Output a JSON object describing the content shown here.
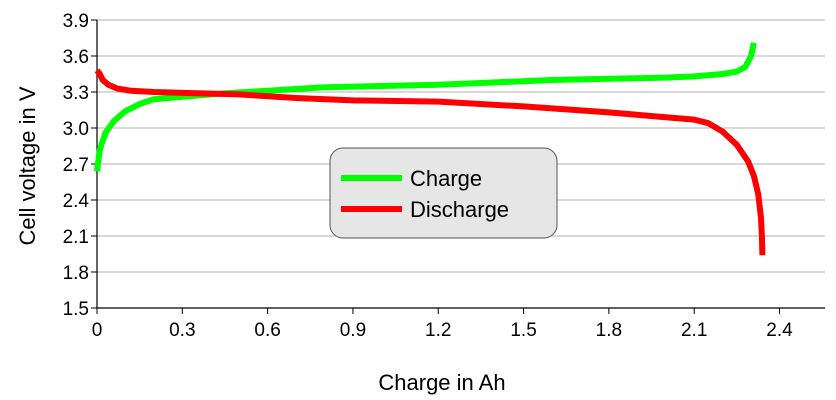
{
  "chart_data": {
    "type": "line",
    "title": "",
    "xlabel": "Charge in Ah",
    "ylabel": "Cell voltage in V",
    "xlim": [
      0,
      2.56
    ],
    "ylim": [
      1.5,
      3.9
    ],
    "x_ticks": [
      "0",
      "0.3",
      "0.6",
      "0.9",
      "1.2",
      "1.5",
      "1.8",
      "2.1",
      "2.4"
    ],
    "y_ticks": [
      "1.5",
      "1.8",
      "2.1",
      "2.4",
      "2.7",
      "3.0",
      "3.3",
      "3.6",
      "3.9"
    ],
    "grid": "horizontal",
    "legend_position": "center",
    "series": [
      {
        "name": "Charge",
        "color": "#00ff00",
        "x": [
          0.0,
          0.01,
          0.03,
          0.06,
          0.1,
          0.15,
          0.2,
          0.3,
          0.45,
          0.6,
          0.8,
          1.0,
          1.2,
          1.4,
          1.6,
          1.8,
          2.0,
          2.1,
          2.2,
          2.25,
          2.28,
          2.3,
          2.31
        ],
        "y": [
          2.64,
          2.82,
          2.96,
          3.06,
          3.14,
          3.2,
          3.24,
          3.26,
          3.29,
          3.31,
          3.34,
          3.35,
          3.36,
          3.38,
          3.4,
          3.41,
          3.42,
          3.43,
          3.45,
          3.47,
          3.51,
          3.6,
          3.71
        ]
      },
      {
        "name": "Discharge",
        "color": "#ff0000",
        "x": [
          0.0,
          0.01,
          0.02,
          0.04,
          0.07,
          0.12,
          0.2,
          0.35,
          0.5,
          0.7,
          0.9,
          1.2,
          1.5,
          1.8,
          2.0,
          2.1,
          2.15,
          2.2,
          2.25,
          2.29,
          2.31,
          2.325,
          2.335,
          2.338,
          2.34
        ],
        "y": [
          3.48,
          3.45,
          3.4,
          3.36,
          3.33,
          3.31,
          3.3,
          3.29,
          3.28,
          3.25,
          3.23,
          3.22,
          3.18,
          3.13,
          3.09,
          3.07,
          3.04,
          2.97,
          2.86,
          2.72,
          2.6,
          2.45,
          2.25,
          2.1,
          1.94
        ]
      }
    ]
  }
}
